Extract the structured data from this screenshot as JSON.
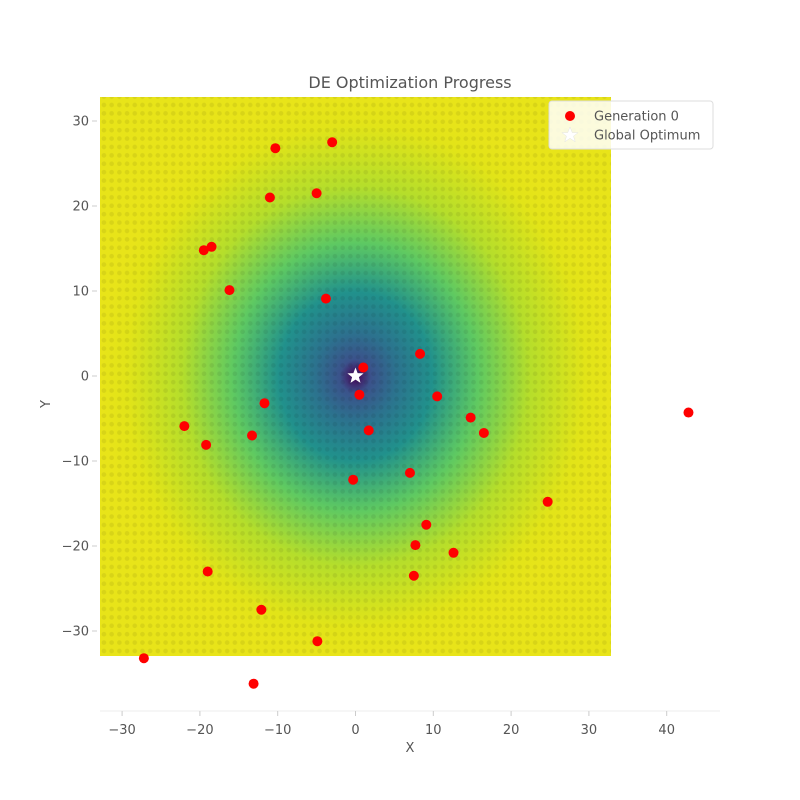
{
  "chart_data": {
    "type": "scatter",
    "title": "DE Optimization Progress",
    "xlabel": "X",
    "ylabel": "Y",
    "xlim": [
      -33,
      47
    ],
    "ylim": [
      -39,
      33
    ],
    "xticks": [
      -30,
      -20,
      -10,
      0,
      10,
      20,
      30,
      40
    ],
    "yticks": [
      -30,
      -20,
      -10,
      0,
      10,
      20,
      30
    ],
    "xtick_labels": [
      "−30",
      "−20",
      "−10",
      "0",
      "10",
      "20",
      "30",
      "40"
    ],
    "ytick_labels": [
      "−30",
      "−20",
      "−10",
      "0",
      "10",
      "20",
      "30"
    ],
    "grid": false,
    "legend_position": "top-right",
    "background": {
      "type": "contour",
      "function_minimum": [
        0,
        0
      ],
      "x_extent": [
        -33,
        33
      ],
      "y_extent": [
        -33,
        33
      ],
      "colormap": "viridis"
    },
    "series": [
      {
        "name": "Generation 0",
        "marker": "circle",
        "color": "#ff0000",
        "points": [
          [
            -3,
            27.5
          ],
          [
            -10.3,
            26.8
          ],
          [
            -5,
            21.5
          ],
          [
            -11,
            21
          ],
          [
            -18.5,
            15.2
          ],
          [
            -19.5,
            14.8
          ],
          [
            -16.2,
            10.1
          ],
          [
            -3.8,
            9.1
          ],
          [
            1,
            1
          ],
          [
            8.3,
            2.6
          ],
          [
            0.5,
            -2.2
          ],
          [
            -11.7,
            -3.2
          ],
          [
            10.5,
            -2.4
          ],
          [
            14.8,
            -4.9
          ],
          [
            16.5,
            -6.7
          ],
          [
            1.7,
            -6.4
          ],
          [
            -22,
            -5.9
          ],
          [
            -13.3,
            -7
          ],
          [
            -19.2,
            -8.1
          ],
          [
            42.8,
            -4.3
          ],
          [
            7,
            -11.4
          ],
          [
            -0.3,
            -12.2
          ],
          [
            24.7,
            -14.8
          ],
          [
            9.1,
            -17.5
          ],
          [
            7.7,
            -19.9
          ],
          [
            12.6,
            -20.8
          ],
          [
            -19,
            -23
          ],
          [
            7.5,
            -23.5
          ],
          [
            -12.1,
            -27.5
          ],
          [
            -4.9,
            -31.2
          ],
          [
            -27.2,
            -33.2
          ],
          [
            -13.1,
            -36.2
          ]
        ]
      },
      {
        "name": "Global Optimum",
        "marker": "star",
        "color": "#ffffff",
        "points": [
          [
            0,
            0
          ]
        ]
      }
    ]
  }
}
